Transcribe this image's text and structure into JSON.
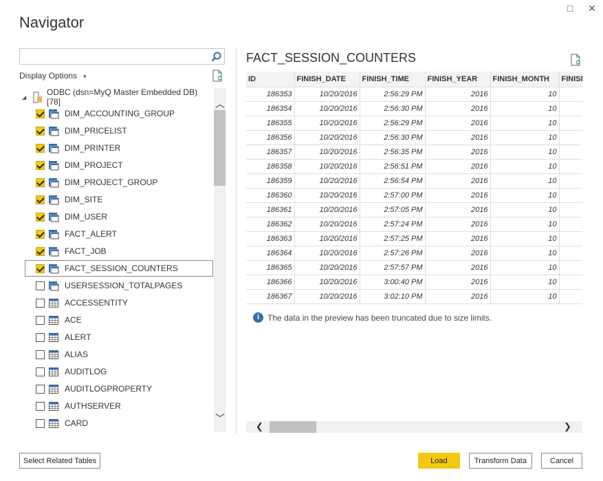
{
  "window": {
    "title": "Navigator",
    "maximize_icon": "□",
    "close_icon": "✕"
  },
  "left": {
    "search_placeholder": "",
    "display_options": "Display Options",
    "root": "ODBC (dsn=MyQ Master Embedded DB) [78]",
    "items": [
      {
        "label": "DIM_ACCOUNTING_GROUP",
        "checked": true,
        "type": "view"
      },
      {
        "label": "DIM_PRICELIST",
        "checked": true,
        "type": "view"
      },
      {
        "label": "DIM_PRINTER",
        "checked": true,
        "type": "view"
      },
      {
        "label": "DIM_PROJECT",
        "checked": true,
        "type": "view"
      },
      {
        "label": "DIM_PROJECT_GROUP",
        "checked": true,
        "type": "view"
      },
      {
        "label": "DIM_SITE",
        "checked": true,
        "type": "view"
      },
      {
        "label": "DIM_USER",
        "checked": true,
        "type": "view"
      },
      {
        "label": "FACT_ALERT",
        "checked": true,
        "type": "view"
      },
      {
        "label": "FACT_JOB",
        "checked": true,
        "type": "view"
      },
      {
        "label": "FACT_SESSION_COUNTERS",
        "checked": true,
        "type": "view",
        "selected": true
      },
      {
        "label": "USERSESSION_TOTALPAGES",
        "checked": false,
        "type": "view"
      },
      {
        "label": "ACCESSENTITY",
        "checked": false,
        "type": "table"
      },
      {
        "label": "ACE",
        "checked": false,
        "type": "table"
      },
      {
        "label": "ALERT",
        "checked": false,
        "type": "table"
      },
      {
        "label": "ALIAS",
        "checked": false,
        "type": "table"
      },
      {
        "label": "AUDITLOG",
        "checked": false,
        "type": "table"
      },
      {
        "label": "AUDITLOGPROPERTY",
        "checked": false,
        "type": "table"
      },
      {
        "label": "AUTHSERVER",
        "checked": false,
        "type": "table"
      },
      {
        "label": "CARD",
        "checked": false,
        "type": "table"
      }
    ]
  },
  "preview": {
    "title": "FACT_SESSION_COUNTERS",
    "columns": [
      "ID",
      "FINISH_DATE",
      "FINISH_TIME",
      "FINISH_YEAR",
      "FINISH_MONTH",
      "FINISH"
    ],
    "rows": [
      [
        "186353",
        "10/20/2016",
        "2:56:29 PM",
        "2016",
        "10"
      ],
      [
        "186354",
        "10/20/2016",
        "2:56:30 PM",
        "2016",
        "10"
      ],
      [
        "186355",
        "10/20/2016",
        "2:56:29 PM",
        "2016",
        "10"
      ],
      [
        "186356",
        "10/20/2016",
        "2:56:30 PM",
        "2016",
        "10"
      ],
      [
        "186357",
        "10/20/2016",
        "2:56:35 PM",
        "2016",
        "10"
      ],
      [
        "186358",
        "10/20/2016",
        "2:56:51 PM",
        "2016",
        "10"
      ],
      [
        "186359",
        "10/20/2016",
        "2:56:54 PM",
        "2016",
        "10"
      ],
      [
        "186360",
        "10/20/2016",
        "2:57:00 PM",
        "2016",
        "10"
      ],
      [
        "186361",
        "10/20/2016",
        "2:57:05 PM",
        "2016",
        "10"
      ],
      [
        "186362",
        "10/20/2016",
        "2:57:24 PM",
        "2016",
        "10"
      ],
      [
        "186363",
        "10/20/2016",
        "2:57:25 PM",
        "2016",
        "10"
      ],
      [
        "186364",
        "10/20/2016",
        "2:57:26 PM",
        "2016",
        "10"
      ],
      [
        "186365",
        "10/20/2016",
        "2:57:57 PM",
        "2016",
        "10"
      ],
      [
        "186366",
        "10/20/2016",
        "3:00:40 PM",
        "2016",
        "10"
      ],
      [
        "186367",
        "10/20/2016",
        "3:02:10 PM",
        "2016",
        "10"
      ]
    ],
    "info": "The data in the preview has been truncated due to size limits."
  },
  "footer": {
    "select_related": "Select Related Tables",
    "load": "Load",
    "transform": "Transform Data",
    "cancel": "Cancel"
  },
  "colors": {
    "accent": "#f2c811",
    "icon_blue": "#2f6fb4"
  }
}
